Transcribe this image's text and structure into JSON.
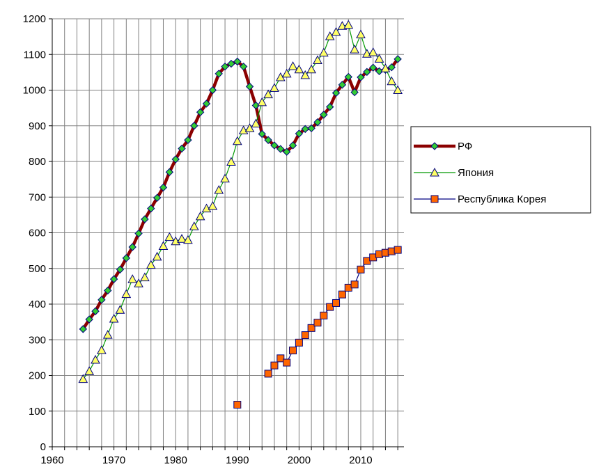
{
  "chart_data": {
    "type": "line",
    "title": "",
    "xlabel": "",
    "ylabel": "",
    "xlim": [
      1960,
      2017
    ],
    "ylim": [
      0,
      1200
    ],
    "x_ticks": [
      1960,
      1970,
      1980,
      1990,
      2000,
      2010
    ],
    "y_ticks": [
      0,
      100,
      200,
      300,
      400,
      500,
      600,
      700,
      800,
      900,
      1000,
      1100,
      1200
    ],
    "grid": true,
    "legend_position": "right",
    "series": [
      {
        "name": "РФ",
        "color": "#8b0000",
        "marker": "diamond",
        "marker_color": "#33cc33",
        "points": [
          [
            1965,
            330
          ],
          [
            1966,
            357
          ],
          [
            1967,
            380
          ],
          [
            1968,
            412
          ],
          [
            1969,
            438
          ],
          [
            1970,
            470
          ],
          [
            1971,
            497
          ],
          [
            1972,
            529
          ],
          [
            1973,
            560
          ],
          [
            1974,
            598
          ],
          [
            1975,
            638
          ],
          [
            1976,
            668
          ],
          [
            1977,
            698
          ],
          [
            1978,
            727
          ],
          [
            1979,
            770
          ],
          [
            1980,
            806
          ],
          [
            1981,
            836
          ],
          [
            1982,
            860
          ],
          [
            1983,
            900
          ],
          [
            1984,
            938
          ],
          [
            1985,
            962
          ],
          [
            1986,
            1000
          ],
          [
            1987,
            1046
          ],
          [
            1988,
            1066
          ],
          [
            1989,
            1074
          ],
          [
            1990,
            1080
          ],
          [
            1991,
            1066
          ],
          [
            1992,
            1010
          ],
          [
            1993,
            957
          ],
          [
            1994,
            877
          ],
          [
            1995,
            860
          ],
          [
            1996,
            845
          ],
          [
            1997,
            835
          ],
          [
            1998,
            827
          ],
          [
            1999,
            845
          ],
          [
            2000,
            878
          ],
          [
            2001,
            891
          ],
          [
            2002,
            893
          ],
          [
            2003,
            910
          ],
          [
            2004,
            931
          ],
          [
            2005,
            953
          ],
          [
            2006,
            992
          ],
          [
            2007,
            1015
          ],
          [
            2008,
            1037
          ],
          [
            2009,
            994
          ],
          [
            2010,
            1036
          ],
          [
            2011,
            1051
          ],
          [
            2012,
            1063
          ],
          [
            2013,
            1053
          ],
          [
            2014,
            1057
          ],
          [
            2015,
            1064
          ],
          [
            2016,
            1087
          ]
        ]
      },
      {
        "name": "Япония",
        "color": "#009900",
        "marker": "triangle",
        "marker_color": "#ffff66",
        "points": [
          [
            1965,
            190
          ],
          [
            1966,
            212
          ],
          [
            1967,
            244
          ],
          [
            1968,
            271
          ],
          [
            1969,
            314
          ],
          [
            1970,
            359
          ],
          [
            1971,
            384
          ],
          [
            1972,
            428
          ],
          [
            1973,
            470
          ],
          [
            1974,
            458
          ],
          [
            1975,
            475
          ],
          [
            1976,
            510
          ],
          [
            1977,
            533
          ],
          [
            1978,
            563
          ],
          [
            1979,
            588
          ],
          [
            1980,
            576
          ],
          [
            1981,
            583
          ],
          [
            1982,
            580
          ],
          [
            1983,
            618
          ],
          [
            1984,
            646
          ],
          [
            1985,
            668
          ],
          [
            1986,
            675
          ],
          [
            1987,
            720
          ],
          [
            1988,
            752
          ],
          [
            1989,
            799
          ],
          [
            1990,
            857
          ],
          [
            1991,
            887
          ],
          [
            1992,
            893
          ],
          [
            1993,
            906
          ],
          [
            1994,
            966
          ],
          [
            1995,
            988
          ],
          [
            1996,
            1006
          ],
          [
            1997,
            1036
          ],
          [
            1998,
            1046
          ],
          [
            1999,
            1067
          ],
          [
            2000,
            1058
          ],
          [
            2001,
            1042
          ],
          [
            2002,
            1058
          ],
          [
            2003,
            1084
          ],
          [
            2004,
            1105
          ],
          [
            2005,
            1151
          ],
          [
            2006,
            1163
          ],
          [
            2007,
            1180
          ],
          [
            2008,
            1183
          ],
          [
            2009,
            1114
          ],
          [
            2010,
            1156
          ],
          [
            2011,
            1102
          ],
          [
            2012,
            1106
          ],
          [
            2013,
            1088
          ],
          [
            2014,
            1061
          ],
          [
            2015,
            1025
          ],
          [
            2016,
            1000
          ]
        ]
      },
      {
        "name": "Республика Корея",
        "color": "#000080",
        "marker": "square",
        "marker_color": "#ff6600",
        "points": [
          [
            1990,
            118
          ],
          [
            1995,
            205
          ],
          [
            1996,
            228
          ],
          [
            1997,
            248
          ],
          [
            1998,
            236
          ],
          [
            1999,
            270
          ],
          [
            2000,
            292
          ],
          [
            2001,
            313
          ],
          [
            2002,
            333
          ],
          [
            2003,
            348
          ],
          [
            2004,
            368
          ],
          [
            2005,
            392
          ],
          [
            2006,
            403
          ],
          [
            2007,
            427
          ],
          [
            2008,
            446
          ],
          [
            2009,
            455
          ],
          [
            2010,
            497
          ],
          [
            2011,
            521
          ],
          [
            2012,
            531
          ],
          [
            2013,
            540
          ],
          [
            2014,
            544
          ],
          [
            2015,
            548
          ],
          [
            2016,
            552
          ]
        ]
      }
    ]
  }
}
